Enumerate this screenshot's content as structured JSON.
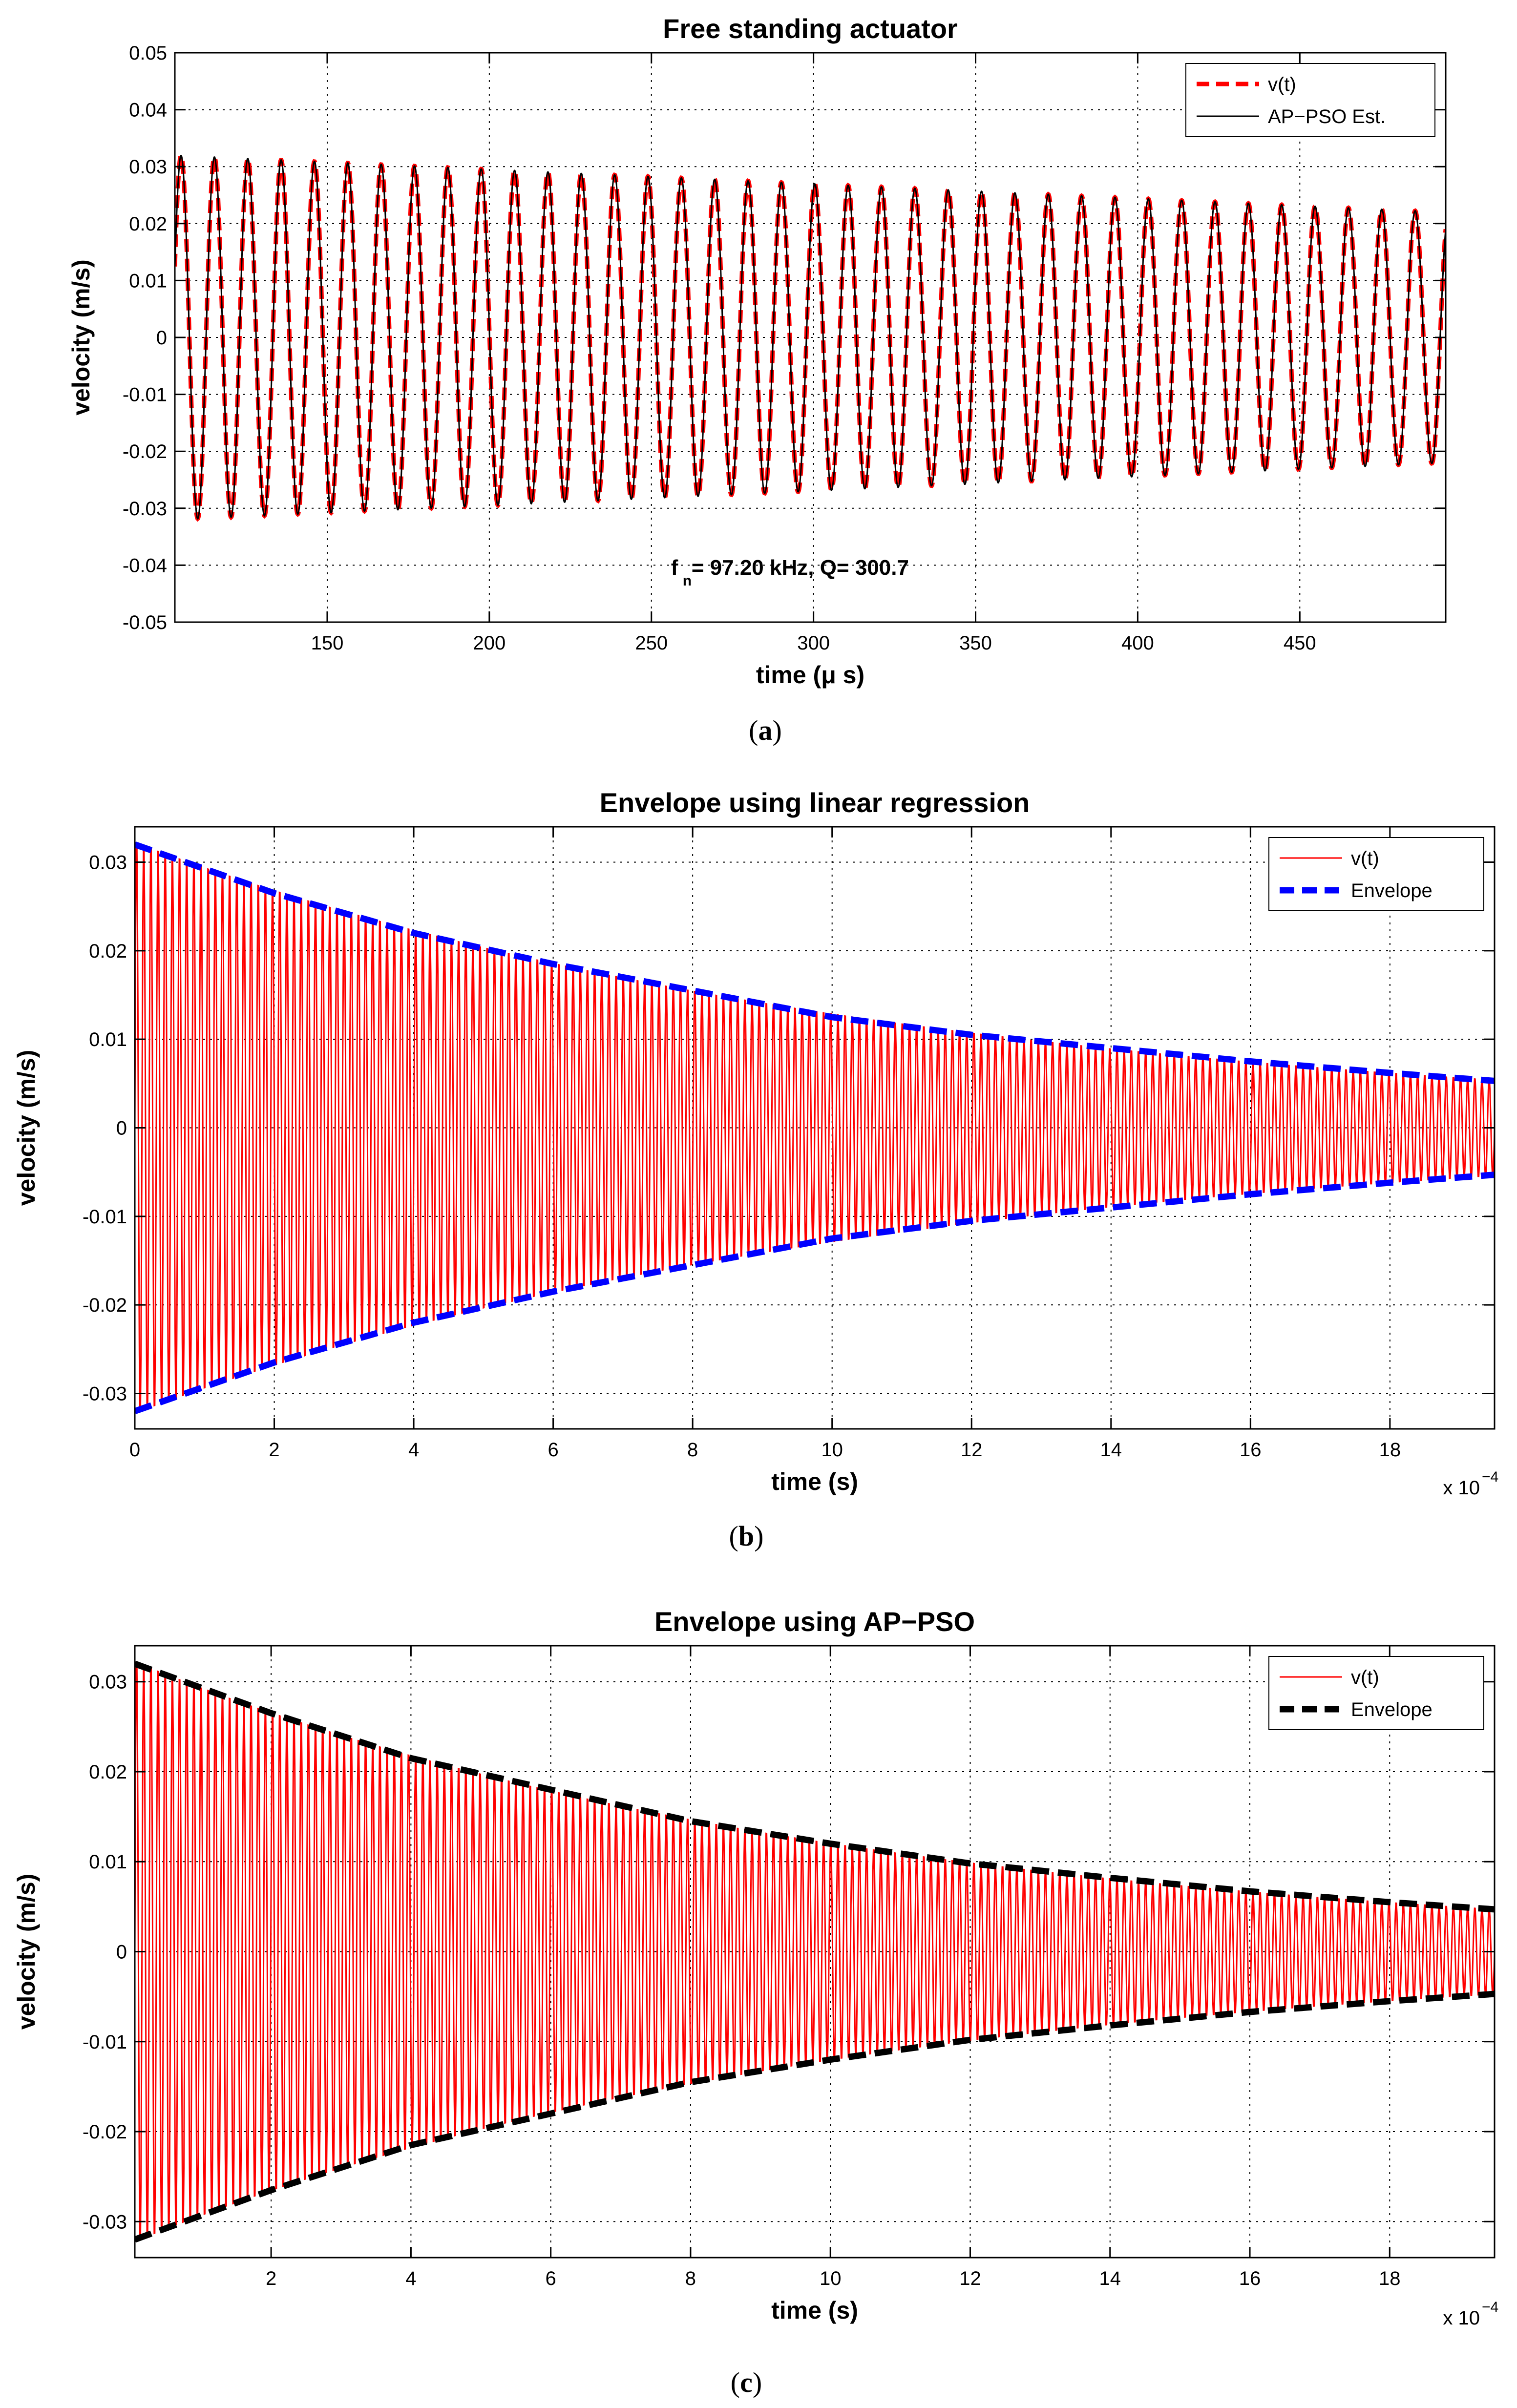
{
  "chart_data": [
    {
      "id": "a",
      "type": "line",
      "caption": "a",
      "title": "Free standing actuator",
      "xlabel": "time (μ s)",
      "ylabel": "velocity (m/s)",
      "xlim": [
        103,
        495
      ],
      "ylim": [
        -0.05,
        0.05
      ],
      "xticks": [
        150,
        200,
        250,
        300,
        350,
        400,
        450
      ],
      "xtick_labels": [
        "150",
        "200",
        "250",
        "300",
        "350",
        "400",
        "450"
      ],
      "yticks": [
        -0.05,
        -0.04,
        -0.03,
        -0.02,
        -0.01,
        0,
        0.01,
        0.02,
        0.03,
        0.04,
        0.05
      ],
      "ytick_labels": [
        "-0.05",
        "-0.04",
        "-0.03",
        "-0.02",
        "-0.01",
        "0",
        "0.01",
        "0.02",
        "0.03",
        "0.04",
        "0.05"
      ],
      "grid": true,
      "legend_position": "top-right",
      "annotation": {
        "f_symbol": "f",
        "subscript": "n",
        "text": " = 97.20 kHz, Q= 300.7",
        "x": 250,
        "y": -0.0405
      },
      "signal": {
        "amplitude_start": 0.032,
        "amplitude_end": 0.022,
        "frequency_khz": 97.2,
        "t_start": 103,
        "t_end": 495
      },
      "series": [
        {
          "name": "v(t)",
          "color": "#ff0000",
          "style": "dashed"
        },
        {
          "name": "AP−PSO Est.",
          "color": "#000000",
          "style": "solid"
        }
      ]
    },
    {
      "id": "b",
      "type": "line",
      "caption": "b",
      "title": "Envelope using linear regression",
      "xlabel": "time (s)",
      "ylabel": "velocity (m/s)",
      "x_multiplier": {
        "base": "x 10",
        "exponent": "−4"
      },
      "xlim": [
        0,
        19.5
      ],
      "ylim": [
        -0.034,
        0.034
      ],
      "xticks": [
        0,
        2,
        4,
        6,
        8,
        10,
        12,
        14,
        16,
        18
      ],
      "xtick_labels": [
        "0",
        "2",
        "4",
        "6",
        "8",
        "10",
        "12",
        "14",
        "16",
        "18"
      ],
      "yticks": [
        -0.03,
        -0.02,
        -0.01,
        0,
        0.01,
        0.02,
        0.03
      ],
      "ytick_labels": [
        "-0.03",
        "-0.02",
        "-0.01",
        "0",
        "0.01",
        "0.02",
        "0.03"
      ],
      "grid": true,
      "legend_position": "top-right",
      "envelope": {
        "x": [
          0,
          2,
          4,
          6,
          8,
          10,
          12,
          14,
          16,
          18,
          19.5
        ],
        "upper": [
          0.032,
          0.0265,
          0.022,
          0.0185,
          0.0155,
          0.0125,
          0.0105,
          0.009,
          0.0075,
          0.0062,
          0.0053
        ]
      },
      "signal": {
        "amplitude_start": 0.033,
        "amplitude_end": 0.0055,
        "cycles": 190,
        "x_start": 0,
        "x_end": 19.5
      },
      "series": [
        {
          "name": "v(t)",
          "color": "#ff0000",
          "style": "solid"
        },
        {
          "name": "Envelope",
          "color": "#0000ff",
          "style": "dashed"
        }
      ]
    },
    {
      "id": "c",
      "type": "line",
      "caption": "c",
      "title": "Envelope using AP−PSO",
      "xlabel": "time (s)",
      "ylabel": "velocity (m/s)",
      "x_multiplier": {
        "base": "x 10",
        "exponent": "−4"
      },
      "xlim": [
        0.05,
        19.5
      ],
      "ylim": [
        -0.034,
        0.034
      ],
      "xticks": [
        2,
        4,
        6,
        8,
        10,
        12,
        14,
        16,
        18
      ],
      "xtick_labels": [
        "2",
        "4",
        "6",
        "8",
        "10",
        "12",
        "14",
        "16",
        "18"
      ],
      "yticks": [
        -0.03,
        -0.02,
        -0.01,
        0,
        0.01,
        0.02,
        0.03
      ],
      "ytick_labels": [
        "-0.03",
        "-0.02",
        "-0.01",
        "0",
        "0.01",
        "0.02",
        "0.03"
      ],
      "grid": true,
      "legend_position": "top-right",
      "envelope": {
        "x": [
          0.05,
          2,
          4,
          6,
          8,
          10,
          12,
          14,
          16,
          18,
          19.5
        ],
        "upper": [
          0.032,
          0.0265,
          0.0215,
          0.018,
          0.0145,
          0.012,
          0.0098,
          0.0082,
          0.0067,
          0.0055,
          0.0047
        ]
      },
      "signal": {
        "amplitude_start": 0.033,
        "amplitude_end": 0.0048,
        "cycles": 190,
        "x_start": 0.05,
        "x_end": 19.5
      },
      "series": [
        {
          "name": "v(t)",
          "color": "#ff0000",
          "style": "solid"
        },
        {
          "name": "Envelope",
          "color": "#000000",
          "style": "dashed"
        }
      ]
    }
  ]
}
